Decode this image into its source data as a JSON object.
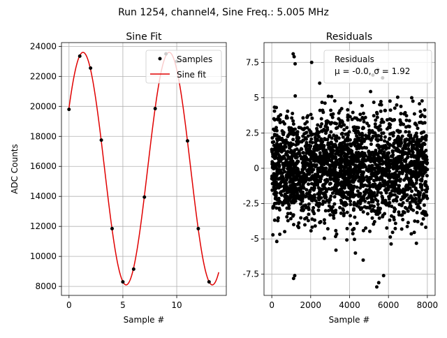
{
  "figure": {
    "suptitle": "Run 1254, channel4, Sine Freq.: 5.005 MHz"
  },
  "chart_data": [
    {
      "type": "line",
      "title": "Sine Fit",
      "xlabel": "Sample #",
      "ylabel": "ADC Counts",
      "xlim": [
        -0.7,
        14.6
      ],
      "ylim": [
        7400,
        24250
      ],
      "xticks": [
        0,
        5,
        10
      ],
      "yticks": [
        8000,
        10000,
        12000,
        14000,
        16000,
        18000,
        20000,
        22000,
        24000
      ],
      "grid": true,
      "legend": {
        "placement": "upper right",
        "entries": [
          "Samples",
          "Sine fit"
        ]
      },
      "series": [
        {
          "name": "Samples",
          "style": "scatter",
          "color": "#000000",
          "x": [
            0,
            1,
            2,
            3,
            4,
            5,
            6,
            7,
            8,
            9,
            10,
            11,
            12,
            13
          ],
          "y": [
            19800,
            23350,
            22550,
            17750,
            11850,
            8300,
            9150,
            13950,
            19850,
            23500,
            23000,
            17700,
            11850,
            8300
          ]
        },
        {
          "name": "Sine fit",
          "style": "line",
          "color": "#e00000",
          "function": {
            "offset": 15850,
            "amplitude": 7750,
            "period_samples": 8.0,
            "phase_peak_x": 1.3
          },
          "x_range": [
            0,
            13.9
          ]
        }
      ]
    },
    {
      "type": "scatter",
      "title": "Residuals",
      "xlabel": "Sample #",
      "ylabel": "",
      "xlim": [
        -400,
        8400
      ],
      "ylim": [
        -9.0,
        8.9
      ],
      "xticks": [
        0,
        2000,
        4000,
        6000,
        8000
      ],
      "yticks": [
        -7.5,
        -5.0,
        -2.5,
        0.0,
        2.5,
        5.0,
        7.5
      ],
      "grid": true,
      "legend": {
        "placement": "upper right",
        "entries": [
          "Residuals",
          "μ = -0.0, σ = 1.92"
        ]
      },
      "series": [
        {
          "name": "Residuals",
          "color": "#000000",
          "n_points": 8000,
          "mean": 0.0,
          "std": 1.92,
          "x_range": [
            0,
            8000
          ]
        }
      ],
      "outliers": [
        {
          "x": 1100,
          "y": 8.1
        },
        {
          "x": 1150,
          "y": 7.9
        },
        {
          "x": 1200,
          "y": 7.4
        },
        {
          "x": 2050,
          "y": 7.5
        },
        {
          "x": 5450,
          "y": 7.0
        },
        {
          "x": 5700,
          "y": 6.4
        },
        {
          "x": 5200,
          "y": 6.6
        },
        {
          "x": 1120,
          "y": -7.8
        },
        {
          "x": 1180,
          "y": -7.6
        },
        {
          "x": 5400,
          "y": -8.4
        },
        {
          "x": 5500,
          "y": -8.1
        },
        {
          "x": 5750,
          "y": -7.6
        },
        {
          "x": 3300,
          "y": -5.8
        },
        {
          "x": 4300,
          "y": -6.0
        },
        {
          "x": 4700,
          "y": -6.5
        }
      ]
    }
  ]
}
